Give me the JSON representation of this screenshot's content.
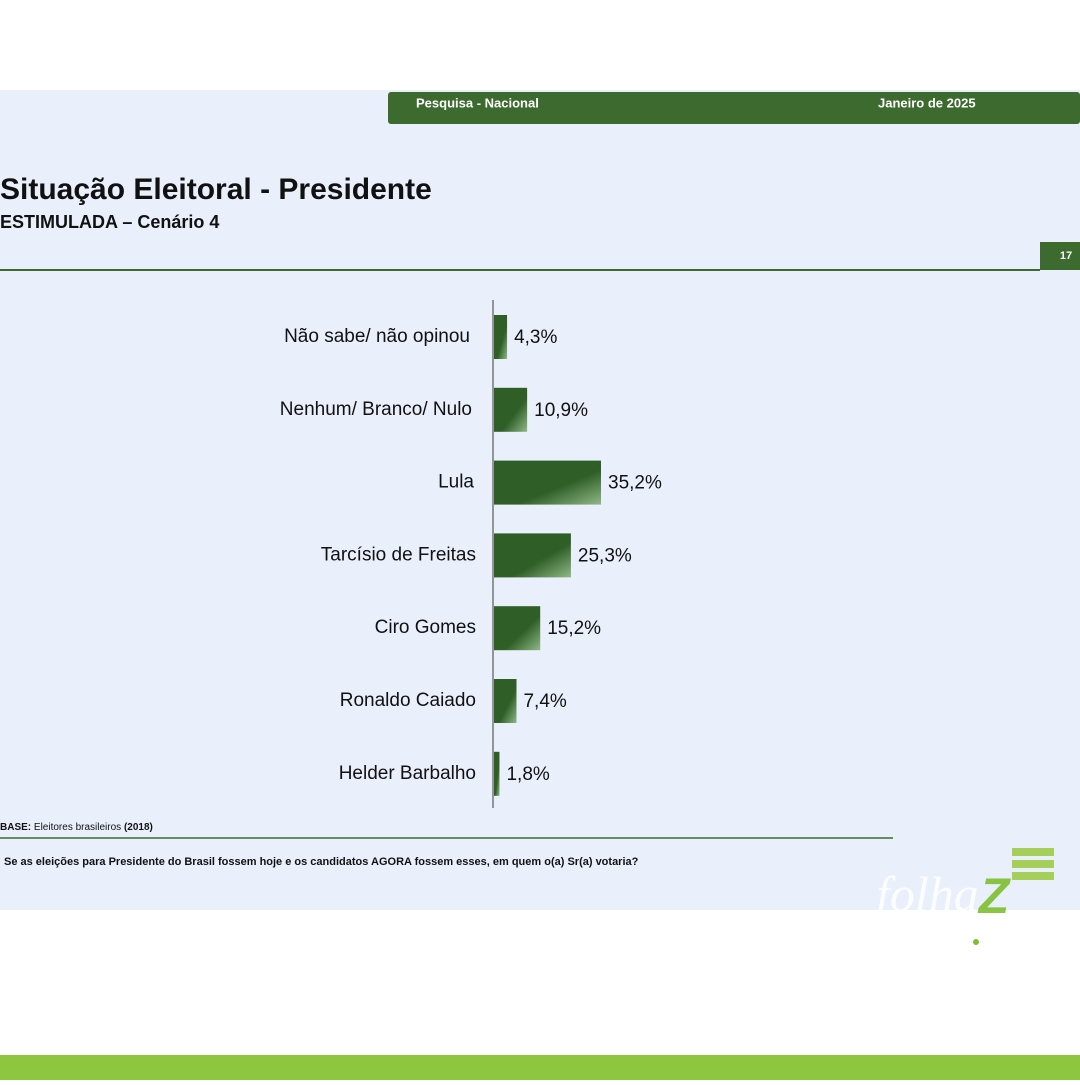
{
  "header": {
    "survey": "Pesquisa - Nacional",
    "date": "Janeiro de 2025"
  },
  "page_number": "17",
  "chart_data": {
    "type": "bar",
    "orientation": "horizontal",
    "title": "Situação Eleitoral - Presidente",
    "subtitle": "ESTIMULADA – Cenário 4",
    "categories": [
      "Não sabe/ não opinou",
      "Nenhum/ Branco/ Nulo",
      "Lula",
      "Tarcísio de Freitas",
      "Ciro Gomes",
      "Ronaldo Caiado",
      "Helder Barbalho"
    ],
    "values": [
      4.3,
      10.9,
      35.2,
      25.3,
      15.2,
      7.4,
      1.8
    ],
    "value_labels": [
      "4,3%",
      "10,9%",
      "35,2%",
      "25,3%",
      "15,2%",
      "7,4%",
      "1,8%"
    ],
    "color": "#2f5e26"
  },
  "base": {
    "label": "BASE:",
    "text": "Eleitores brasileiros",
    "count": "(2018)"
  },
  "question": "Se as eleições para Presidente do Brasil fossem hoje e os candidatos AGORA fossem esses, em quem o(a) Sr(a) votaria?",
  "logo": {
    "name": "folha",
    "letter": "Z"
  }
}
